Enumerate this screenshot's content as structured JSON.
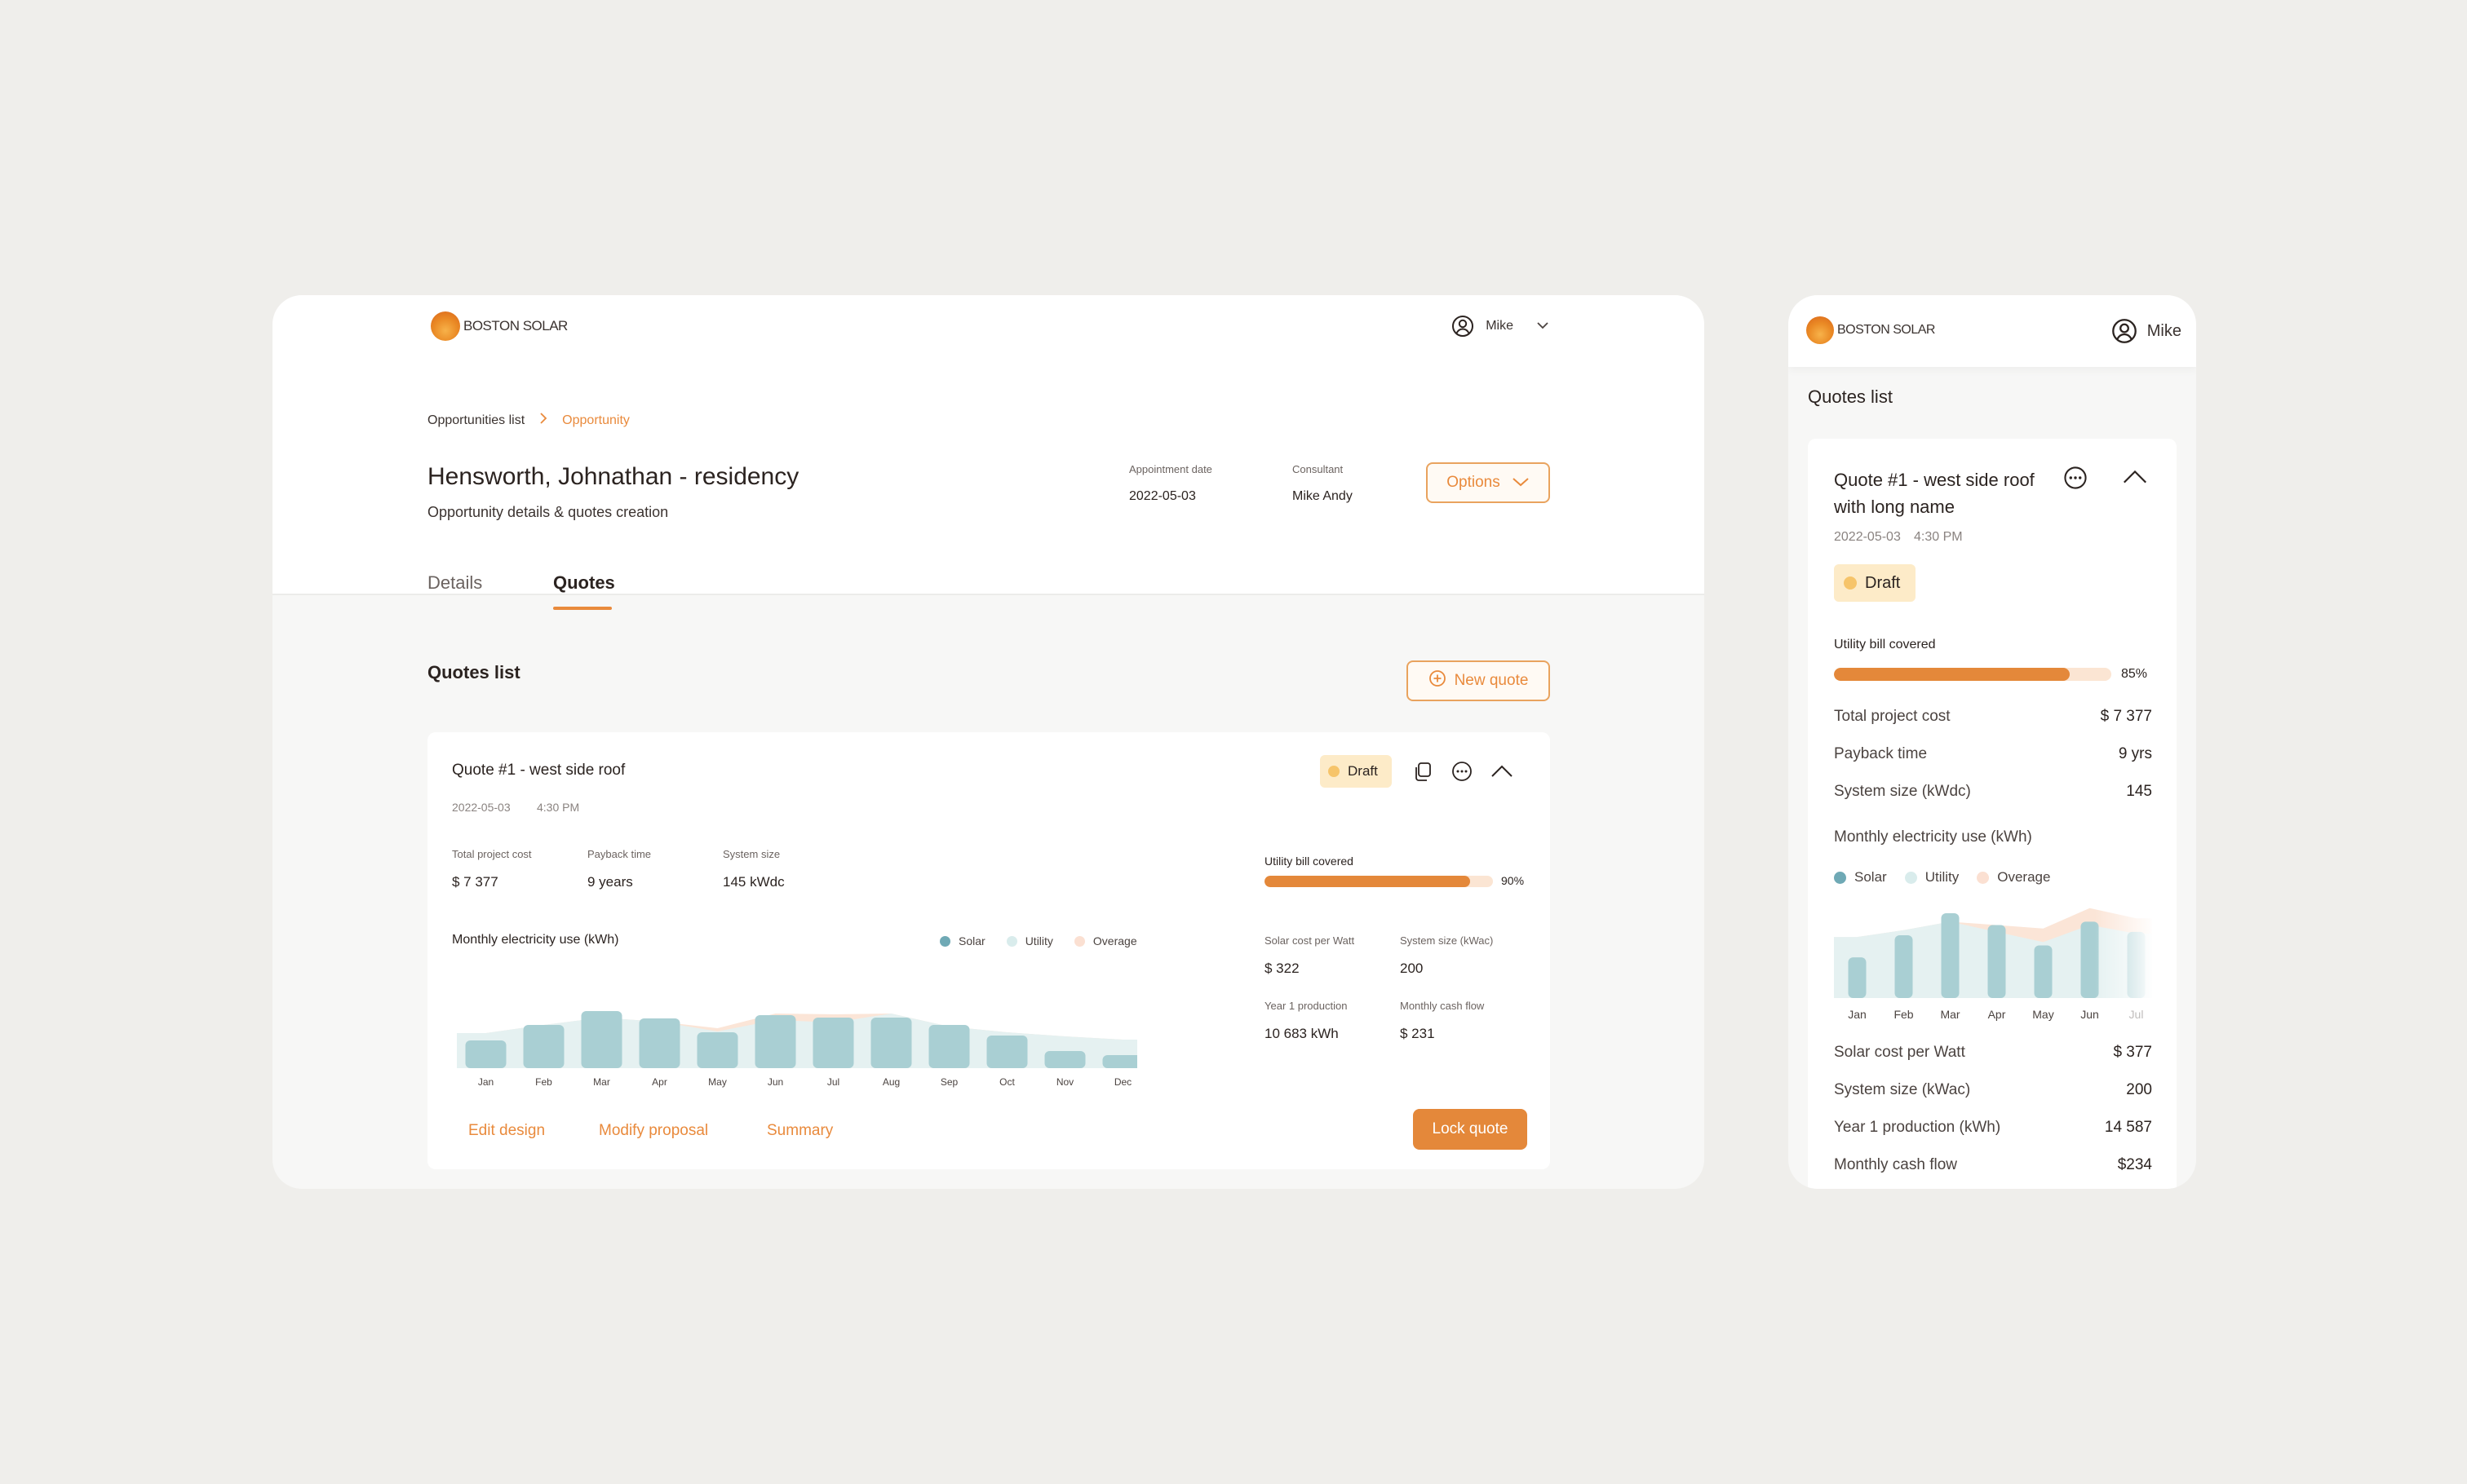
{
  "brand": {
    "logo_text": "BOSTON SOLAR"
  },
  "user": {
    "name": "Mike"
  },
  "breadcrumb": {
    "first": "Opportunities list",
    "current": "Opportunity"
  },
  "page": {
    "title": "Hensworth, Johnathan - residency",
    "subtitle": "Opportunity details & quotes creation"
  },
  "meta": {
    "appointment_label": "Appointment date",
    "appointment_value": "2022-05-03",
    "consultant_label": "Consultant",
    "consultant_value": "Mike Andy"
  },
  "options_button": "Options",
  "tabs": [
    {
      "label": "Details",
      "active": false
    },
    {
      "label": "Quotes",
      "active": true
    }
  ],
  "quotes_section": {
    "title": "Quotes list",
    "new_quote_label": "New quote"
  },
  "quote": {
    "title": "Quote #1 - west side roof",
    "date": "2022-05-03",
    "time": "4:30 PM",
    "status": "Draft",
    "stats": [
      {
        "label": "Total project cost",
        "value": "$ 7 377"
      },
      {
        "label": "Payback time",
        "value": "9 years"
      },
      {
        "label": "System size",
        "value": "145 kWdc"
      }
    ],
    "utility_label": "Utility bill covered",
    "utility_pct": "90%",
    "utility_fraction": 0.9,
    "right_stats": [
      {
        "label": "Solar cost per Watt",
        "value": "$ 322"
      },
      {
        "label": "System size (kWac)",
        "value": "200"
      },
      {
        "label": "Year 1 production",
        "value": "10 683 kWh"
      },
      {
        "label": "Monthly cash flow",
        "value": "$ 231"
      }
    ],
    "chart_title": "Monthly electricity use (kWh)",
    "legend": [
      "Solar",
      "Utility",
      "Overage"
    ],
    "actions": {
      "edit": "Edit design",
      "modify": "Modify proposal",
      "summary": "Summary",
      "lock": "Lock quote"
    }
  },
  "chart_data": [
    {
      "type": "bar",
      "title": "Monthly electricity use (kWh)",
      "categories": [
        "Jan",
        "Feb",
        "Mar",
        "Apr",
        "May",
        "Jun",
        "Jul",
        "Aug",
        "Sep",
        "Oct",
        "Nov",
        "Dec"
      ],
      "series": [
        {
          "name": "Solar",
          "values": [
            34,
            53,
            70,
            61,
            44,
            65,
            62,
            62,
            53,
            40,
            21,
            16
          ]
        },
        {
          "name": "Utility",
          "values": [
            43,
            53,
            62,
            57,
            45,
            59,
            56,
            67,
            51,
            44,
            39,
            35
          ]
        },
        {
          "name": "Overage",
          "values": [
            0,
            0,
            0,
            0,
            4,
            8,
            10,
            0,
            0,
            0,
            0,
            0
          ]
        }
      ],
      "ylim": [
        0,
        100
      ]
    },
    {
      "type": "bar",
      "title": "Monthly electricity use (kWh)",
      "categories": [
        "Jan",
        "Feb",
        "Mar",
        "Apr",
        "May",
        "Jun",
        "Jul"
      ],
      "series": [
        {
          "name": "Solar",
          "values": [
            48,
            74,
            100,
            86,
            62,
            90,
            78
          ]
        },
        {
          "name": "Utility",
          "values": [
            72,
            80,
            90,
            78,
            66,
            86,
            76
          ]
        },
        {
          "name": "Overage",
          "values": [
            0,
            0,
            0,
            8,
            16,
            20,
            18
          ]
        }
      ],
      "ylim": [
        0,
        100
      ]
    }
  ],
  "mobile": {
    "section_title": "Quotes list",
    "quote": {
      "title": "Quote #1 - west side roof with long name",
      "date": "2022-05-03",
      "time": "4:30 PM",
      "status": "Draft",
      "utility_label": "Utility bill covered",
      "utility_pct": "85%",
      "utility_fraction": 0.85,
      "stats": [
        {
          "label": "Total project cost",
          "value": "$ 7 377"
        },
        {
          "label": "Payback time",
          "value": "9 yrs"
        },
        {
          "label": "System size (kWdc)",
          "value": "145"
        }
      ],
      "chart_title": "Monthly electricity use (kWh)",
      "legend": [
        "Solar",
        "Utility",
        "Overage"
      ],
      "stats2": [
        {
          "label": "Solar cost per Watt",
          "value": "$ 377"
        },
        {
          "label": "System size (kWac)",
          "value": "200"
        },
        {
          "label": "Year 1 production (kWh)",
          "value": "14 587"
        },
        {
          "label": "Monthly cash flow",
          "value": "$234"
        }
      ]
    }
  },
  "colors": {
    "accent": "#e4883a",
    "solar": "#a9cfd3",
    "solar_legend": "#6fa9b5",
    "utility_legend": "#d9ecec",
    "overage_legend": "#fbe0d2",
    "draft_badge": "#fdebc8",
    "draft_dot": "#f6c46a"
  }
}
